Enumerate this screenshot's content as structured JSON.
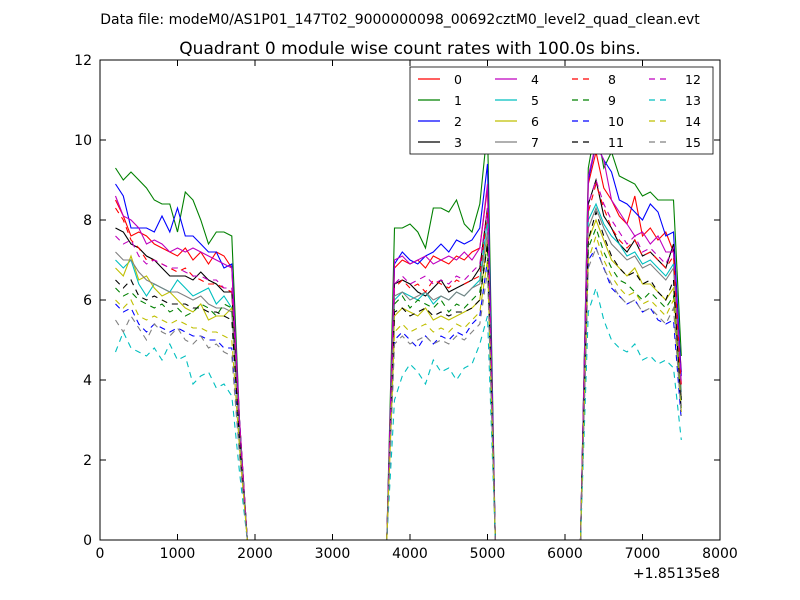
{
  "chart_data": {
    "type": "line",
    "suptitle": "Data file: modeM0/AS1P01_147T02_9000000098_00692cztM0_level2_quad_clean.evt",
    "title": "Quadrant 0 module wise count rates with 100.0s bins.",
    "xlabel": "",
    "ylabel": "",
    "x_offset_label": "+1.85135e8",
    "xlim": [
      0,
      8000
    ],
    "ylim": [
      0,
      12
    ],
    "xticks": [
      "0",
      "1000",
      "2000",
      "3000",
      "4000",
      "5000",
      "6000",
      "7000",
      "8000"
    ],
    "yticks": [
      "0",
      "2",
      "4",
      "6",
      "8",
      "10",
      "12"
    ],
    "legend_position": "top-right",
    "x": [
      200,
      300,
      400,
      500,
      600,
      700,
      800,
      900,
      1000,
      1100,
      1200,
      1300,
      1400,
      1500,
      1600,
      1700,
      1800,
      1900,
      3700,
      3800,
      3900,
      4000,
      4100,
      4200,
      4300,
      4400,
      4500,
      4600,
      4700,
      4800,
      4900,
      5000,
      5100,
      5200,
      6200,
      6300,
      6400,
      6500,
      6600,
      6700,
      6800,
      6900,
      7000,
      7100,
      7200,
      7300,
      7400,
      7500
    ],
    "series": [
      {
        "name": "0",
        "color": "#ff0000",
        "dash": "solid",
        "values": [
          8.5,
          8.1,
          7.6,
          7.7,
          7.6,
          7.4,
          7.3,
          7.2,
          7.1,
          7.3,
          7.0,
          7.2,
          6.9,
          7.2,
          7.1,
          6.8,
          3.0,
          0,
          0,
          6.8,
          7.0,
          6.9,
          7.0,
          6.8,
          7.1,
          7.0,
          6.9,
          7.1,
          7.0,
          7.2,
          7.3,
          8.8,
          0,
          0,
          0,
          8.9,
          9.7,
          8.8,
          8.5,
          8.1,
          7.9,
          8.6,
          7.6,
          7.8,
          7.5,
          7.7,
          7.2,
          4.2
        ]
      },
      {
        "name": "1",
        "color": "#008000",
        "dash": "solid",
        "values": [
          9.3,
          9.0,
          9.2,
          9.0,
          8.8,
          8.5,
          8.4,
          8.4,
          7.7,
          8.7,
          8.5,
          8.0,
          7.4,
          7.7,
          7.7,
          7.6,
          3.0,
          0,
          0,
          7.8,
          7.8,
          7.9,
          7.7,
          7.3,
          8.3,
          8.3,
          8.2,
          8.5,
          7.9,
          7.7,
          8.4,
          10.3,
          0,
          0,
          0,
          9.3,
          10.4,
          9.3,
          9.7,
          9.1,
          9.0,
          8.9,
          8.6,
          8.7,
          8.5,
          8.5,
          8.5,
          4.6
        ]
      },
      {
        "name": "2",
        "color": "#0000ff",
        "dash": "solid",
        "values": [
          8.9,
          8.6,
          7.8,
          7.8,
          7.8,
          7.7,
          8.1,
          7.7,
          8.3,
          7.6,
          7.6,
          7.4,
          7.2,
          7.2,
          6.8,
          6.9,
          3.0,
          0,
          0,
          6.9,
          7.2,
          7.0,
          6.9,
          7.1,
          7.2,
          7.4,
          7.2,
          7.5,
          7.4,
          7.5,
          7.8,
          9.4,
          0,
          0,
          0,
          9.0,
          9.9,
          9.5,
          9.2,
          8.5,
          8.4,
          8.2,
          8.0,
          8.4,
          8.2,
          7.6,
          7.7,
          4.1
        ]
      },
      {
        "name": "3",
        "color": "#000000",
        "dash": "solid",
        "values": [
          7.8,
          7.7,
          7.4,
          7.3,
          7.1,
          7.0,
          6.8,
          6.6,
          6.6,
          6.6,
          6.5,
          6.7,
          6.5,
          6.4,
          6.2,
          6.2,
          2.8,
          0,
          0,
          6.4,
          6.5,
          6.4,
          6.2,
          6.1,
          6.3,
          6.5,
          6.2,
          6.3,
          6.4,
          6.5,
          6.8,
          8.3,
          0,
          0,
          0,
          8.4,
          9.0,
          8.1,
          7.8,
          7.4,
          7.2,
          7.5,
          7.1,
          7.2,
          7.0,
          6.8,
          7.4,
          3.5
        ]
      },
      {
        "name": "4",
        "color": "#bf00bf",
        "dash": "solid",
        "values": [
          8.6,
          8.1,
          8.0,
          7.8,
          7.4,
          7.5,
          7.4,
          7.2,
          7.3,
          7.2,
          7.3,
          7.2,
          7.1,
          7.0,
          6.9,
          6.8,
          3.0,
          0,
          0,
          7.0,
          7.1,
          6.9,
          7.0,
          7.1,
          6.9,
          7.0,
          7.1,
          7.0,
          7.2,
          7.0,
          7.3,
          8.9,
          0,
          0,
          0,
          9.1,
          9.9,
          9.5,
          8.5,
          8.2,
          7.9,
          7.6,
          7.7,
          7.4,
          7.6,
          7.2,
          7.2,
          3.9
        ]
      },
      {
        "name": "5",
        "color": "#00bfbf",
        "dash": "solid",
        "values": [
          7.0,
          6.8,
          7.0,
          6.4,
          6.1,
          6.4,
          6.3,
          6.2,
          6.5,
          6.3,
          6.1,
          6.2,
          6.3,
          5.9,
          6.1,
          5.8,
          2.7,
          0,
          0,
          6.0,
          6.2,
          6.1,
          6.0,
          6.2,
          5.9,
          6.1,
          6.0,
          6.2,
          6.1,
          6.3,
          6.5,
          8.0,
          0,
          0,
          0,
          8.0,
          8.4,
          7.9,
          7.6,
          7.4,
          7.1,
          7.2,
          6.9,
          7.0,
          6.8,
          6.6,
          6.9,
          3.7
        ]
      },
      {
        "name": "6",
        "color": "#bfbf00",
        "dash": "solid",
        "values": [
          6.8,
          6.6,
          7.1,
          6.5,
          6.6,
          6.3,
          6.1,
          6.2,
          6.0,
          5.8,
          5.7,
          5.9,
          5.5,
          5.6,
          5.6,
          5.8,
          2.6,
          0,
          0,
          5.6,
          5.8,
          5.7,
          5.6,
          5.8,
          5.5,
          5.6,
          5.5,
          5.6,
          5.7,
          5.8,
          6.0,
          7.5,
          0,
          0,
          0,
          7.5,
          8.0,
          7.5,
          7.0,
          6.8,
          6.6,
          6.8,
          6.4,
          6.4,
          6.2,
          6.0,
          6.3,
          3.6
        ]
      },
      {
        "name": "7",
        "color": "#808080",
        "dash": "solid",
        "values": [
          7.2,
          7.0,
          7.0,
          6.7,
          6.5,
          6.4,
          6.3,
          6.2,
          6.2,
          6.1,
          6.0,
          6.1,
          5.9,
          5.8,
          5.8,
          5.7,
          2.6,
          0,
          0,
          6.1,
          6.2,
          6.0,
          6.1,
          6.2,
          6.0,
          6.1,
          6.0,
          6.2,
          6.1,
          6.3,
          6.4,
          7.7,
          0,
          0,
          0,
          7.8,
          8.3,
          7.8,
          7.4,
          7.2,
          7.0,
          7.1,
          6.8,
          6.9,
          6.7,
          6.5,
          6.8,
          3.6
        ]
      },
      {
        "name": "8",
        "color": "#ff0000",
        "dash": "dashed",
        "values": [
          8.3,
          8.0,
          7.5,
          7.3,
          7.0,
          7.0,
          6.9,
          6.8,
          6.7,
          6.8,
          6.6,
          6.5,
          6.4,
          6.4,
          6.3,
          6.2,
          2.9,
          0,
          0,
          6.3,
          6.5,
          6.3,
          6.4,
          6.2,
          6.5,
          6.4,
          6.3,
          6.5,
          6.4,
          6.5,
          6.6,
          8.2,
          0,
          0,
          0,
          8.2,
          8.9,
          8.3,
          7.8,
          7.5,
          7.3,
          7.5,
          7.1,
          7.2,
          7.0,
          6.8,
          7.1,
          3.8
        ]
      },
      {
        "name": "9",
        "color": "#008000",
        "dash": "dashed",
        "values": [
          6.3,
          6.1,
          6.2,
          6.0,
          5.9,
          5.8,
          5.9,
          5.7,
          5.8,
          5.6,
          5.7,
          5.9,
          5.8,
          5.6,
          5.9,
          5.8,
          2.7,
          0,
          0,
          5.9,
          6.1,
          5.8,
          6.0,
          5.9,
          5.8,
          6.0,
          5.7,
          5.9,
          5.8,
          6.0,
          6.2,
          7.4,
          0,
          0,
          0,
          7.3,
          7.8,
          7.2,
          6.8,
          6.5,
          6.4,
          6.2,
          6.0,
          6.2,
          6.0,
          5.8,
          6.1,
          3.3
        ]
      },
      {
        "name": "10",
        "color": "#0000ff",
        "dash": "dashed",
        "values": [
          5.9,
          5.7,
          5.8,
          5.4,
          5.2,
          5.4,
          5.3,
          5.2,
          5.3,
          5.2,
          5.1,
          5.1,
          5.0,
          5.0,
          4.8,
          4.8,
          2.2,
          0,
          0,
          5.0,
          5.2,
          5.0,
          4.8,
          5.1,
          4.9,
          5.1,
          5.0,
          5.2,
          5.1,
          5.4,
          5.6,
          7.0,
          0,
          0,
          0,
          7.0,
          7.3,
          6.8,
          6.3,
          6.1,
          5.9,
          6.0,
          5.7,
          5.8,
          5.5,
          5.4,
          5.5,
          3.0
        ]
      },
      {
        "name": "11",
        "color": "#000000",
        "dash": "dashed",
        "values": [
          6.5,
          6.3,
          6.5,
          6.1,
          6.0,
          6.1,
          6.0,
          5.9,
          5.9,
          5.9,
          5.8,
          5.8,
          5.7,
          5.7,
          5.6,
          5.5,
          2.5,
          0,
          0,
          5.7,
          5.8,
          5.6,
          5.7,
          5.8,
          5.6,
          5.7,
          5.6,
          5.7,
          5.7,
          5.8,
          6.0,
          7.4,
          0,
          0,
          0,
          7.5,
          8.2,
          7.6,
          7.1,
          6.8,
          6.6,
          6.7,
          6.4,
          6.5,
          6.2,
          6.0,
          6.5,
          3.2
        ]
      },
      {
        "name": "12",
        "color": "#bf00bf",
        "dash": "dashed",
        "values": [
          7.6,
          7.4,
          7.5,
          7.1,
          6.9,
          7.0,
          6.9,
          6.8,
          6.8,
          6.7,
          6.6,
          6.6,
          6.5,
          6.5,
          6.3,
          6.3,
          2.9,
          0,
          0,
          6.4,
          6.6,
          6.4,
          6.5,
          6.6,
          6.4,
          6.5,
          6.4,
          6.6,
          6.5,
          6.7,
          6.9,
          8.3,
          0,
          0,
          0,
          8.4,
          9.0,
          8.4,
          8.0,
          7.7,
          7.4,
          7.6,
          7.2,
          7.3,
          7.1,
          6.9,
          7.3,
          3.9
        ]
      },
      {
        "name": "13",
        "color": "#00bfbf",
        "dash": "dashed",
        "values": [
          4.7,
          5.2,
          4.8,
          4.7,
          4.6,
          4.8,
          4.5,
          4.9,
          4.5,
          4.6,
          3.9,
          4.1,
          4.2,
          3.8,
          3.9,
          3.6,
          1.7,
          0,
          0,
          3.5,
          4.1,
          4.4,
          4.2,
          3.9,
          4.5,
          4.2,
          4.3,
          4.0,
          4.3,
          4.4,
          4.9,
          5.6,
          0,
          0,
          0,
          5.7,
          6.3,
          5.5,
          5.0,
          4.8,
          4.7,
          4.9,
          4.5,
          4.6,
          4.4,
          4.5,
          4.3,
          2.5
        ]
      },
      {
        "name": "14",
        "color": "#bfbf00",
        "dash": "dashed",
        "values": [
          6.0,
          5.8,
          6.0,
          5.6,
          5.5,
          5.6,
          5.5,
          5.4,
          5.5,
          5.4,
          5.3,
          5.3,
          5.2,
          5.2,
          5.1,
          5.0,
          2.3,
          0,
          0,
          5.2,
          5.4,
          5.2,
          5.3,
          5.4,
          5.2,
          5.3,
          5.2,
          5.4,
          5.3,
          5.5,
          5.7,
          7.0,
          0,
          0,
          0,
          7.0,
          7.6,
          7.0,
          6.6,
          6.3,
          6.1,
          6.2,
          5.9,
          6.0,
          5.8,
          5.6,
          6.0,
          3.2
        ]
      },
      {
        "name": "15",
        "color": "#808080",
        "dash": "dashed",
        "values": [
          5.5,
          5.2,
          5.6,
          5.3,
          5.0,
          5.4,
          5.2,
          5.1,
          5.3,
          5.0,
          4.9,
          5.1,
          4.8,
          4.9,
          4.7,
          4.6,
          2.1,
          0,
          0,
          4.9,
          5.1,
          4.9,
          5.0,
          5.1,
          4.9,
          5.0,
          4.9,
          5.1,
          5.0,
          5.2,
          5.4,
          6.7,
          0,
          0,
          0,
          6.8,
          7.3,
          6.8,
          6.4,
          6.1,
          5.9,
          6.0,
          5.7,
          5.8,
          5.6,
          5.4,
          5.8,
          3.1
        ]
      }
    ]
  }
}
